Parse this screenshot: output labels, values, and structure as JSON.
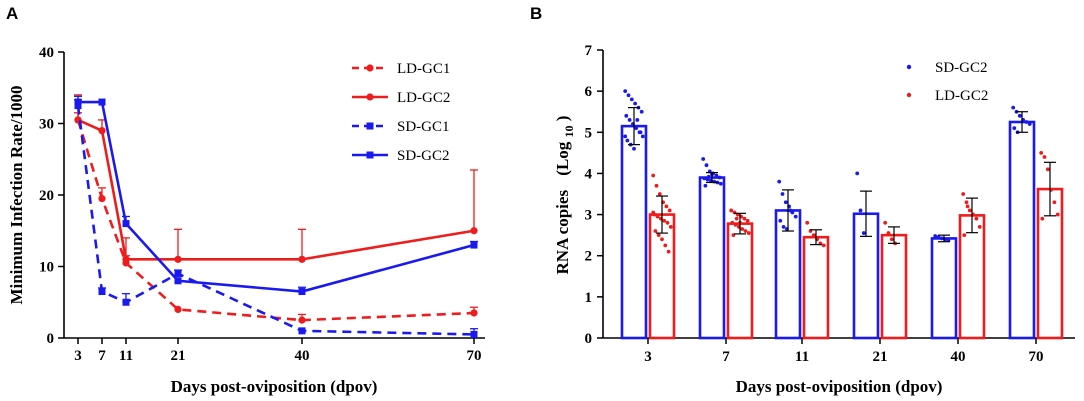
{
  "chart_data": [
    {
      "panel": "A",
      "type": "line",
      "title": "",
      "xlabel": "Days post-oviposition (dpov)",
      "ylabel": "Minimum Infection Rate/1000",
      "x": [
        3,
        7,
        11,
        21,
        40,
        70
      ],
      "x_ticks": [
        "3",
        "7",
        "11",
        "21",
        "40",
        "70"
      ],
      "y_ticks": [
        "0",
        "10",
        "20",
        "30",
        "40"
      ],
      "xlim": [
        0,
        70
      ],
      "ylim": [
        0,
        40
      ],
      "legend_position": "top-right",
      "series": [
        {
          "name": "LD-GC1",
          "color": "#ee1c1c",
          "dash": "dashed",
          "marker": "circle",
          "values": [
            30.5,
            19.5,
            10.5,
            4,
            2.5,
            3.5
          ],
          "err_up": [
            1,
            1.5,
            1,
            0,
            0.8,
            0.8
          ]
        },
        {
          "name": "LD-GC2",
          "color": "#ee1c1c",
          "dash": "solid",
          "marker": "circle",
          "values": [
            30.5,
            29,
            11,
            11,
            11,
            15
          ],
          "err_up": [
            3.5,
            1.5,
            3,
            4.2,
            4.2,
            8.5
          ]
        },
        {
          "name": "SD-GC1",
          "color": "#1a1aee",
          "dash": "dashed",
          "marker": "square",
          "values": [
            32.5,
            6.5,
            5,
            9,
            1,
            0.5
          ],
          "err_up": [
            0.8,
            0.5,
            1.2,
            0.5,
            0,
            0.8
          ]
        },
        {
          "name": "SD-GC2",
          "color": "#1a1aee",
          "dash": "solid",
          "marker": "square",
          "values": [
            33,
            33,
            16,
            8,
            6.5,
            13
          ],
          "err_up": [
            0.8,
            0,
            1,
            0,
            0.6,
            0.5
          ]
        }
      ]
    },
    {
      "panel": "B",
      "type": "bar",
      "title": "",
      "xlabel": "Days post-oviposition (dpov)",
      "ylabel": "RNA copies",
      "ylabel_math": "(Log",
      "ylabel_sub": "10",
      "ylabel_close": ")",
      "categories": [
        "3",
        "7",
        "11",
        "21",
        "40",
        "70"
      ],
      "y_ticks": [
        "0",
        "1",
        "2",
        "3",
        "4",
        "5",
        "6",
        "7"
      ],
      "ylim": [
        0,
        7
      ],
      "legend_position": "top-center",
      "series": [
        {
          "name": "SD-GC2",
          "color": "#1a1aee",
          "values": [
            5.15,
            3.9,
            3.1,
            3.02,
            2.42,
            5.25
          ],
          "err": [
            0.45,
            0.12,
            0.5,
            0.55,
            0.08,
            0.25
          ],
          "points": [
            [
              6.0,
              5.9,
              5.8,
              5.7,
              5.6,
              5.5,
              5.4,
              5.3,
              5.2,
              5.1,
              5.0,
              4.9,
              4.8,
              4.7,
              4.6,
              5.3,
              5.0,
              4.9
            ],
            [
              4.35,
              4.2,
              4.05,
              4.0,
              3.95,
              3.9,
              3.88,
              3.85,
              3.82,
              3.8,
              3.78,
              3.75,
              3.7,
              3.92,
              3.98
            ],
            [
              3.8,
              3.5,
              3.3,
              3.2,
              3.05,
              2.95,
              2.85,
              2.7,
              2.65,
              3.1
            ],
            [
              4.0,
              3.1,
              2.55
            ],
            [
              2.48,
              2.45,
              2.42,
              2.4,
              2.38
            ],
            [
              5.6,
              5.5,
              5.4,
              5.3,
              5.25,
              5.2,
              5.1,
              5.0
            ]
          ]
        },
        {
          "name": "LD-GC2",
          "color": "#ee1c1c",
          "values": [
            3.0,
            2.78,
            2.45,
            2.5,
            2.98,
            3.62
          ],
          "err": [
            0.45,
            0.25,
            0.18,
            0.2,
            0.42,
            0.65
          ],
          "points": [
            [
              3.95,
              3.7,
              3.5,
              3.3,
              3.2,
              3.1,
              3.0,
              2.95,
              2.9,
              2.85,
              2.8,
              2.7,
              2.6,
              2.5,
              2.4,
              2.25,
              2.1,
              3.05
            ],
            [
              3.1,
              3.05,
              3.0,
              2.95,
              2.9,
              2.85,
              2.8,
              2.75,
              2.7,
              2.65,
              2.6,
              2.55,
              2.5,
              2.9,
              2.8
            ],
            [
              2.8,
              2.6,
              2.5,
              2.4,
              2.3,
              2.25
            ],
            [
              2.8,
              2.55,
              2.4,
              2.3
            ],
            [
              3.5,
              3.3,
              3.1,
              3.0,
              2.9,
              2.7,
              2.5,
              3.2
            ],
            [
              4.5,
              4.4,
              4.1,
              3.6,
              3.3,
              3.0,
              2.9
            ]
          ]
        }
      ]
    }
  ]
}
